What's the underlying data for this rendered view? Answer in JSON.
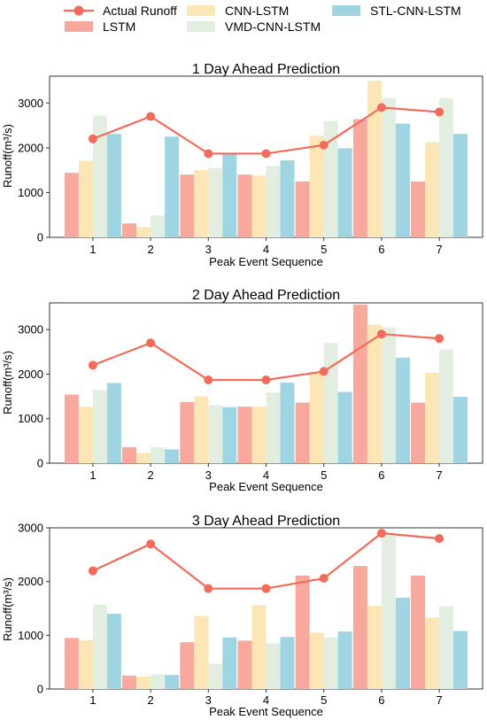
{
  "legend": {
    "items": [
      {
        "label": "Actual Runoff",
        "kind": "line",
        "color": "#f26b5b"
      },
      {
        "label": "LSTM",
        "kind": "bar",
        "color": "#f8a89c"
      },
      {
        "label": "CNN-LSTM",
        "kind": "bar",
        "color": "#fde6b5"
      },
      {
        "label": "VMD-CNN-LSTM",
        "kind": "bar",
        "color": "#e2efe0"
      },
      {
        "label": "STL-CNN-LSTM",
        "kind": "bar",
        "color": "#9fd5e3"
      }
    ]
  },
  "chart_data": [
    {
      "type": "bar",
      "title": "1 Day Ahead Prediction",
      "xlabel": "Peak Event Sequence",
      "ylabel": "Runoff(m³/s)",
      "categories": [
        "1",
        "2",
        "3",
        "4",
        "5",
        "6",
        "7"
      ],
      "ylim": [
        0,
        3600
      ],
      "yticks": [
        0,
        1000,
        2000,
        3000
      ],
      "series": [
        {
          "name": "LSTM",
          "type": "bar",
          "color": "#f8a89c",
          "values": [
            1440,
            310,
            1400,
            1400,
            1250,
            2640,
            1250
          ]
        },
        {
          "name": "CNN-LSTM",
          "type": "bar",
          "color": "#fde6b5",
          "values": [
            1710,
            230,
            1500,
            1380,
            2270,
            3500,
            2120
          ]
        },
        {
          "name": "VMD-CNN-LSTM",
          "type": "bar",
          "color": "#e2efe0",
          "values": [
            2720,
            490,
            1550,
            1600,
            2600,
            3110,
            3110
          ]
        },
        {
          "name": "STL-CNN-LSTM",
          "type": "bar",
          "color": "#9fd5e3",
          "values": [
            2310,
            2250,
            1850,
            1720,
            1990,
            2540,
            2310
          ]
        },
        {
          "name": "Actual Runoff",
          "type": "line",
          "color": "#f26b5b",
          "values": [
            2200,
            2700,
            1870,
            1870,
            2060,
            2900,
            2800
          ]
        }
      ]
    },
    {
      "type": "bar",
      "title": "2 Day Ahead Prediction",
      "xlabel": "Peak Event Sequence",
      "ylabel": "Runoff(m³/s)",
      "categories": [
        "1",
        "2",
        "3",
        "4",
        "5",
        "6",
        "7"
      ],
      "ylim": [
        0,
        3600
      ],
      "yticks": [
        0,
        1000,
        2000,
        3000
      ],
      "series": [
        {
          "name": "LSTM",
          "type": "bar",
          "color": "#f8a89c",
          "values": [
            1540,
            360,
            1370,
            1270,
            1360,
            3560,
            1360
          ]
        },
        {
          "name": "CNN-LSTM",
          "type": "bar",
          "color": "#fde6b5",
          "values": [
            1270,
            230,
            1500,
            1270,
            2020,
            3110,
            2030
          ]
        },
        {
          "name": "VMD-CNN-LSTM",
          "type": "bar",
          "color": "#e2efe0",
          "values": [
            1640,
            360,
            1300,
            1590,
            2700,
            3050,
            2550
          ]
        },
        {
          "name": "STL-CNN-LSTM",
          "type": "bar",
          "color": "#9fd5e3",
          "values": [
            1800,
            310,
            1260,
            1810,
            1600,
            2370,
            1490
          ]
        },
        {
          "name": "Actual Runoff",
          "type": "line",
          "color": "#f26b5b",
          "values": [
            2200,
            2700,
            1870,
            1870,
            2060,
            2900,
            2800
          ]
        }
      ]
    },
    {
      "type": "bar",
      "title": "3 Day Ahead Prediction",
      "xlabel": "Peak Event Sequence",
      "ylabel": "Runoff(m³/s)",
      "categories": [
        "1",
        "2",
        "3",
        "4",
        "5",
        "6",
        "7"
      ],
      "ylim": [
        0,
        3000
      ],
      "yticks": [
        0,
        1000,
        2000,
        3000
      ],
      "series": [
        {
          "name": "LSTM",
          "type": "bar",
          "color": "#f8a89c",
          "values": [
            950,
            250,
            870,
            900,
            2110,
            2290,
            2110
          ]
        },
        {
          "name": "CNN-LSTM",
          "type": "bar",
          "color": "#fde6b5",
          "values": [
            910,
            230,
            1360,
            1560,
            1050,
            1550,
            1330
          ]
        },
        {
          "name": "VMD-CNN-LSTM",
          "type": "bar",
          "color": "#e2efe0",
          "values": [
            1570,
            270,
            470,
            850,
            960,
            2900,
            1540
          ]
        },
        {
          "name": "STL-CNN-LSTM",
          "type": "bar",
          "color": "#9fd5e3",
          "values": [
            1400,
            260,
            960,
            970,
            1070,
            1700,
            1080
          ]
        },
        {
          "name": "Actual Runoff",
          "type": "line",
          "color": "#f26b5b",
          "values": [
            2200,
            2700,
            1870,
            1870,
            2060,
            2900,
            2800
          ]
        }
      ]
    }
  ]
}
